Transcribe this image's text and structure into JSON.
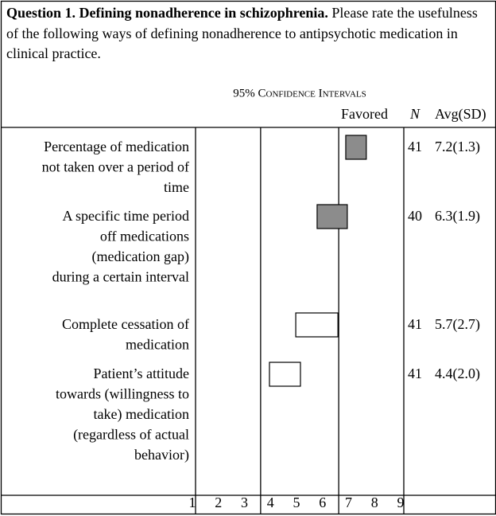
{
  "chart_data": {
    "type": "interval",
    "title": "Question 1. Defining nonadherence in schizophrenia.",
    "subtitle": "Please rate the usefulness of the following ways of defining nonadherence to antipsychotic medication in clinical practice.",
    "axis_title": "95% Confidence Intervals",
    "columns": [
      "Favored",
      "N",
      "Avg(SD)"
    ],
    "xlim": [
      1,
      9
    ],
    "xticks": [
      1,
      2,
      3,
      4,
      5,
      6,
      7,
      8,
      9
    ],
    "zone_lines": [
      1,
      3.5,
      6.5,
      9
    ],
    "rows": [
      {
        "label_lines": [
          "Percentage of medication",
          "not taken over a period of",
          "time"
        ],
        "ci_low": 6.77,
        "ci_high": 7.56,
        "color": "#8c8c8c",
        "n": 41,
        "avg_sd": "7.2(1.3)"
      },
      {
        "label_lines": [
          "A specific time period",
          "off medications",
          "(medication gap)",
          "during a certain interval"
        ],
        "ci_low": 5.67,
        "ci_high": 6.83,
        "color": "#8c8c8c",
        "n": 40,
        "avg_sd": "6.3(1.9)"
      },
      {
        "label_lines": [
          "Complete cessation of",
          "medication"
        ],
        "ci_low": 4.85,
        "ci_high": 6.47,
        "color": "#ffffff",
        "n": 41,
        "avg_sd": "5.7(2.7)"
      },
      {
        "label_lines": [
          "Patient’s attitude",
          "towards (willingness to",
          "take) medication",
          "(regardless of actual",
          "behavior)"
        ],
        "ci_low": 3.84,
        "ci_high": 5.03,
        "color": "#ffffff",
        "n": 41,
        "avg_sd": "4.4(2.0)"
      }
    ]
  }
}
